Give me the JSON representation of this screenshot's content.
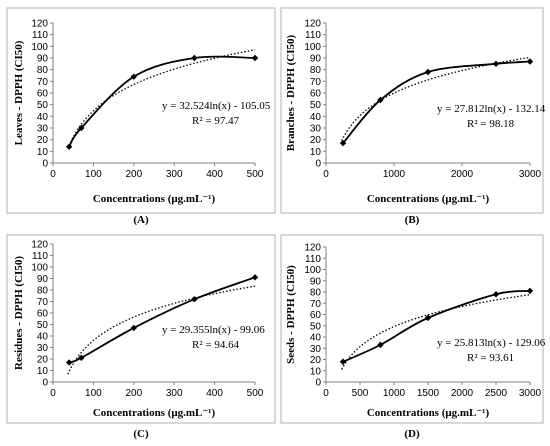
{
  "chart_data": [
    {
      "type": "line",
      "panel_label": "(A)",
      "xlabel": "Concentrations (μg.mL⁻¹)",
      "ylabel": "Leaves - DPPH (CI50)",
      "xlim": [
        0,
        500
      ],
      "ylim": [
        0,
        120
      ],
      "xticks": [
        0,
        100,
        200,
        300,
        400,
        500
      ],
      "yticks": [
        0,
        10,
        20,
        30,
        40,
        50,
        60,
        70,
        80,
        90,
        100,
        110,
        120
      ],
      "series": [
        {
          "x": [
            40,
            70,
            200,
            350,
            500
          ],
          "y": [
            14,
            30,
            74,
            90,
            90
          ]
        }
      ],
      "trendline": {
        "a": 32.524,
        "b": -105.05
      },
      "equation": "y = 32.524ln(x) - 105.05",
      "r2": "R² = 97.47"
    },
    {
      "type": "line",
      "panel_label": "(B)",
      "xlabel": "Concentrations (μg.mL⁻¹)",
      "ylabel": "Branches - DPPH (CI50)",
      "xlim": [
        0,
        3000
      ],
      "ylim": [
        0,
        120
      ],
      "xticks": [
        0,
        1000,
        2000,
        3000
      ],
      "yticks": [
        0,
        10,
        20,
        30,
        40,
        50,
        60,
        70,
        80,
        90,
        100,
        110,
        120
      ],
      "series": [
        {
          "x": [
            250,
            800,
            1500,
            2500,
            3000
          ],
          "y": [
            17,
            54,
            78,
            85,
            87
          ]
        }
      ],
      "trendline": {
        "a": 27.812,
        "b": -132.14
      },
      "equation": "y = 27.812ln(x) - 132.14",
      "r2": "R² = 98.18"
    },
    {
      "type": "line",
      "panel_label": "(C)",
      "xlabel": "Concentrations (μg.mL⁻¹)",
      "ylabel": "Residues - DPPH (CI50)",
      "xlim": [
        0,
        500
      ],
      "ylim": [
        0,
        120
      ],
      "xticks": [
        0,
        100,
        200,
        300,
        400,
        500
      ],
      "yticks": [
        0,
        10,
        20,
        30,
        40,
        50,
        60,
        70,
        80,
        90,
        100,
        110,
        120
      ],
      "series": [
        {
          "x": [
            40,
            70,
            200,
            350,
            500
          ],
          "y": [
            17,
            21,
            47,
            72,
            91
          ]
        }
      ],
      "trendline": {
        "a": 29.355,
        "b": -99.06
      },
      "equation": "y = 29.355ln(x) - 99.06",
      "r2": "R² = 94.64"
    },
    {
      "type": "line",
      "panel_label": "(D)",
      "xlabel": "Concentrations (μg.mL⁻¹)",
      "ylabel": "Seeds - DPPH (CI50)",
      "xlim": [
        0,
        3000
      ],
      "ylim": [
        0,
        120
      ],
      "xticks": [
        0,
        500,
        1000,
        1500,
        2000,
        2500,
        3000
      ],
      "yticks": [
        0,
        10,
        20,
        30,
        40,
        50,
        60,
        70,
        80,
        90,
        100,
        110,
        120
      ],
      "series": [
        {
          "x": [
            250,
            800,
            1500,
            2500,
            3000
          ],
          "y": [
            18,
            33,
            57,
            78,
            81
          ]
        }
      ],
      "trendline": {
        "a": 25.813,
        "b": -129.06
      },
      "equation": "y = 25.813ln(x) - 129.06",
      "r2": "R² = 93.61"
    }
  ]
}
